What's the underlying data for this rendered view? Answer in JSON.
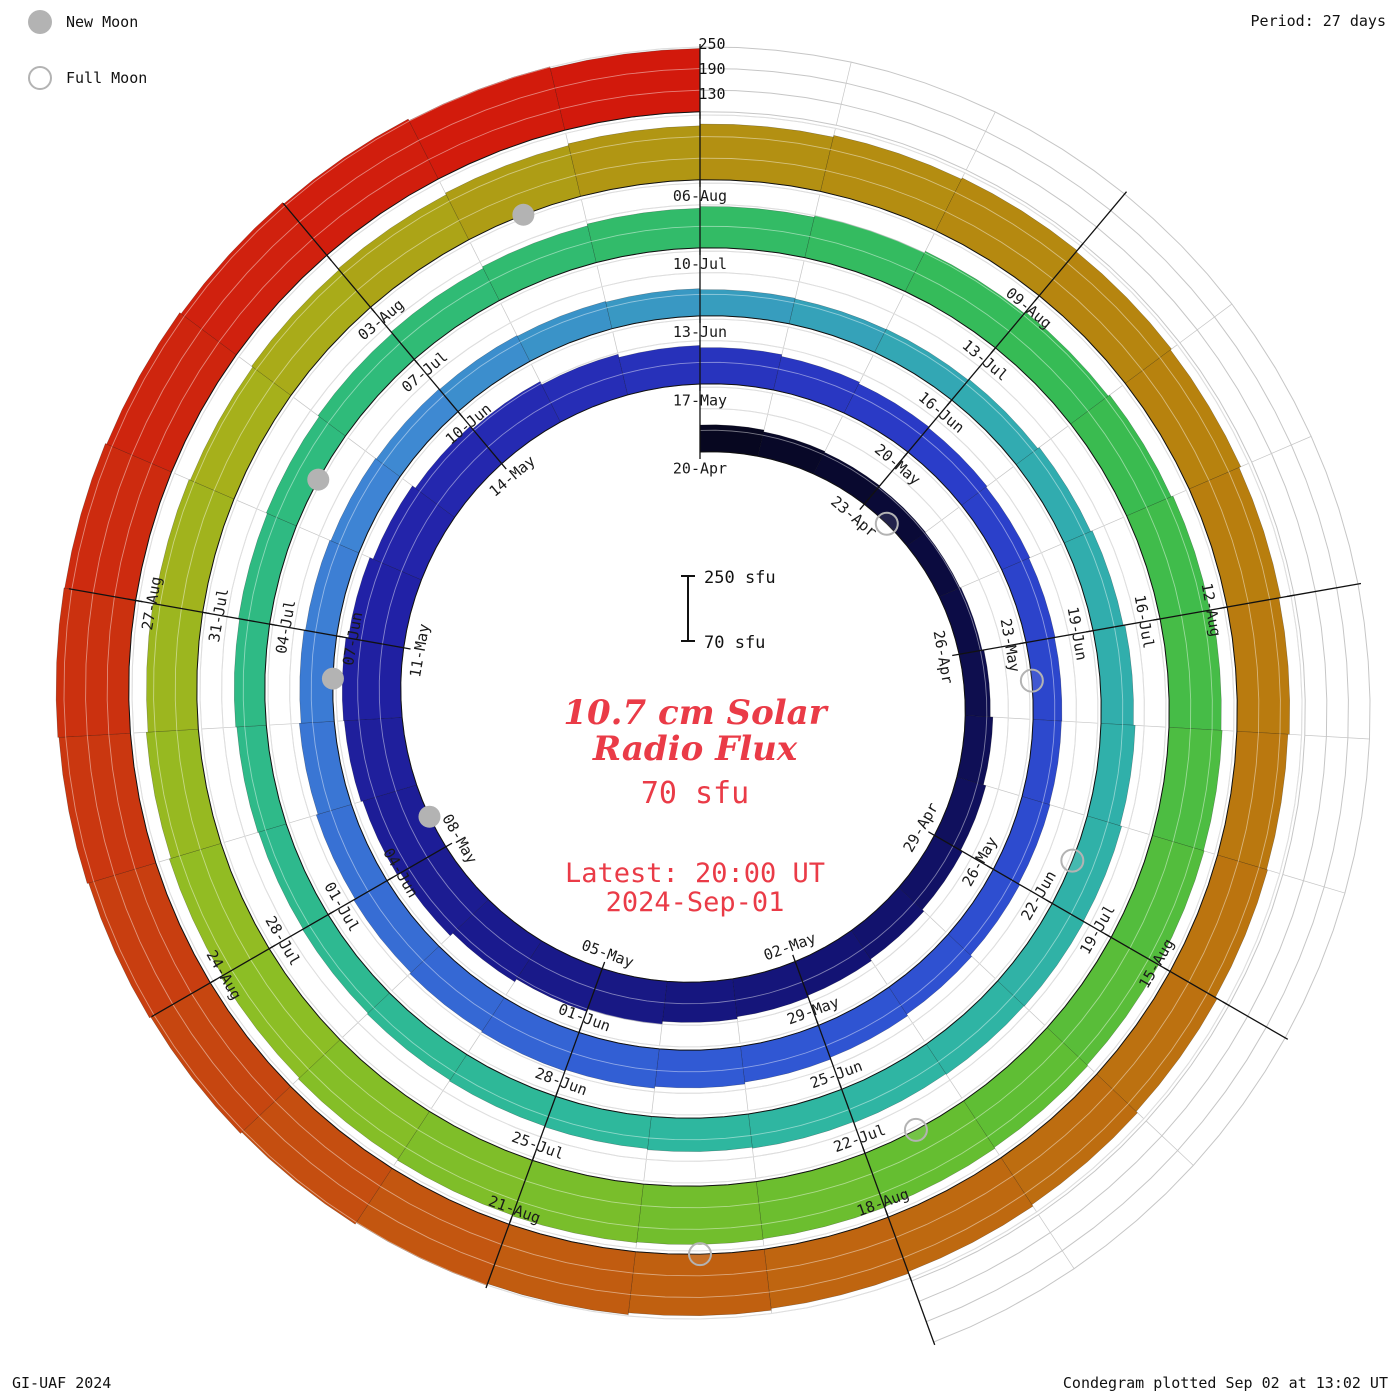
{
  "header": {
    "period_label": "Period: 27 days"
  },
  "legend": {
    "new_moon": "New Moon",
    "full_moon": "Full Moon"
  },
  "footer": {
    "left": "GI-UAF 2024",
    "right": "Condegram plotted Sep 02 at 13:02 UT"
  },
  "center": {
    "title_line1": "10.7 cm Solar",
    "title_line2": "Radio Flux",
    "subtitle": "70 sfu",
    "latest_line1": "Latest: 20:00 UT",
    "latest_line2": "2024-Sep-01",
    "scale_top_label": "250 sfu",
    "scale_bottom_label": "70 sfu"
  },
  "radial_axis": {
    "labels": [
      "250",
      "190",
      "130"
    ]
  },
  "chart_data": {
    "type": "spiral-bar-condegram",
    "title": "10.7 cm Solar Radio Flux",
    "start_date": "2024-04-20",
    "end_date": "2024-09-01",
    "days_per_revolution": 27,
    "flux_baseline_sfu": 70,
    "flux_gridlines_sfu": [
      130,
      190,
      250
    ],
    "values_sfu": [
      145,
      140,
      137,
      134,
      133,
      135,
      140,
      147,
      154,
      160,
      166,
      171,
      176,
      182,
      190,
      197,
      206,
      216,
      226,
      231,
      233,
      226,
      216,
      206,
      196,
      186,
      177,
      171,
      166,
      161,
      158,
      155,
      152,
      150,
      149,
      151,
      155,
      160,
      165,
      170,
      175,
      180,
      184,
      181,
      177,
      172,
      167,
      162,
      158,
      155,
      152,
      150,
      148,
      146,
      143,
      141,
      142,
      145,
      150,
      155,
      160,
      165,
      170,
      172,
      171,
      169,
      166,
      163,
      160,
      158,
      155,
      152,
      150,
      152,
      155,
      158,
      161,
      165,
      170,
      175,
      180,
      185,
      190,
      195,
      200,
      205,
      210,
      215,
      218,
      220,
      222,
      225,
      228,
      230,
      232,
      234,
      232,
      229,
      225,
      220,
      215,
      210,
      206,
      202,
      206,
      210,
      215,
      220,
      225,
      230,
      234,
      230,
      226,
      221,
      216,
      212,
      215,
      221,
      226,
      231,
      236,
      241,
      246,
      251,
      256,
      261,
      265,
      269,
      272,
      270,
      266,
      261,
      256,
      251,
      246
    ],
    "tick_labels": [
      {
        "day": 0,
        "label": "20-Apr"
      },
      {
        "day": 3,
        "label": "23-Apr"
      },
      {
        "day": 6,
        "label": "26-Apr"
      },
      {
        "day": 9,
        "label": "29-Apr"
      },
      {
        "day": 12,
        "label": "02-May"
      },
      {
        "day": 15,
        "label": "05-May"
      },
      {
        "day": 18,
        "label": "08-May"
      },
      {
        "day": 21,
        "label": "11-May"
      },
      {
        "day": 24,
        "label": "14-May"
      },
      {
        "day": 27,
        "label": "17-May"
      },
      {
        "day": 30,
        "label": "20-May"
      },
      {
        "day": 33,
        "label": "23-May"
      },
      {
        "day": 36,
        "label": "26-May"
      },
      {
        "day": 39,
        "label": "29-May"
      },
      {
        "day": 42,
        "label": "01-Jun"
      },
      {
        "day": 45,
        "label": "04-Jun"
      },
      {
        "day": 48,
        "label": "07-Jun"
      },
      {
        "day": 51,
        "label": "10-Jun"
      },
      {
        "day": 54,
        "label": "13-Jun"
      },
      {
        "day": 57,
        "label": "16-Jun"
      },
      {
        "day": 60,
        "label": "19-Jun"
      },
      {
        "day": 63,
        "label": "22-Jun"
      },
      {
        "day": 66,
        "label": "25-Jun"
      },
      {
        "day": 69,
        "label": "28-Jun"
      },
      {
        "day": 72,
        "label": "01-Jul"
      },
      {
        "day": 75,
        "label": "04-Jul"
      },
      {
        "day": 78,
        "label": "07-Jul"
      },
      {
        "day": 81,
        "label": "10-Jul"
      },
      {
        "day": 84,
        "label": "13-Jul"
      },
      {
        "day": 87,
        "label": "16-Jul"
      },
      {
        "day": 90,
        "label": "19-Jul"
      },
      {
        "day": 93,
        "label": "22-Jul"
      },
      {
        "day": 96,
        "label": "25-Jul"
      },
      {
        "day": 99,
        "label": "28-Jul"
      },
      {
        "day": 102,
        "label": "31-Jul"
      },
      {
        "day": 105,
        "label": "03-Aug"
      },
      {
        "day": 108,
        "label": "06-Aug"
      },
      {
        "day": 111,
        "label": "09-Aug"
      },
      {
        "day": 114,
        "label": "12-Aug"
      },
      {
        "day": 117,
        "label": "15-Aug"
      },
      {
        "day": 120,
        "label": "18-Aug"
      },
      {
        "day": 123,
        "label": "21-Aug"
      },
      {
        "day": 126,
        "label": "24-Aug"
      },
      {
        "day": 129,
        "label": "27-Aug"
      }
    ],
    "moons": {
      "new_moon_days": [
        18,
        47,
        76,
        106
      ],
      "full_moon_days": [
        3,
        33,
        62,
        92,
        121
      ]
    },
    "future_empty_days": 12,
    "colormap": [
      [
        0,
        "#06061c"
      ],
      [
        12,
        "#141478"
      ],
      [
        22,
        "#2222a8"
      ],
      [
        30,
        "#2a3cc8"
      ],
      [
        40,
        "#3058d4"
      ],
      [
        50,
        "#3f86d4"
      ],
      [
        57,
        "#32aab2"
      ],
      [
        68,
        "#2eb89e"
      ],
      [
        78,
        "#2fbb78"
      ],
      [
        85,
        "#37bb52"
      ],
      [
        92,
        "#62be32"
      ],
      [
        99,
        "#8fbe24"
      ],
      [
        104,
        "#a8ae1a"
      ],
      [
        108,
        "#b29212"
      ],
      [
        113,
        "#b8800e"
      ],
      [
        118,
        "#bc6f10"
      ],
      [
        123,
        "#c25a10"
      ],
      [
        127,
        "#c93a10"
      ],
      [
        131,
        "#cf220e"
      ],
      [
        134,
        "#d2190c"
      ]
    ],
    "colors": {
      "title_red": "#ea3b47",
      "grid_gray": "#c6c6c6",
      "moon_gray": "#b3b3b3"
    }
  }
}
